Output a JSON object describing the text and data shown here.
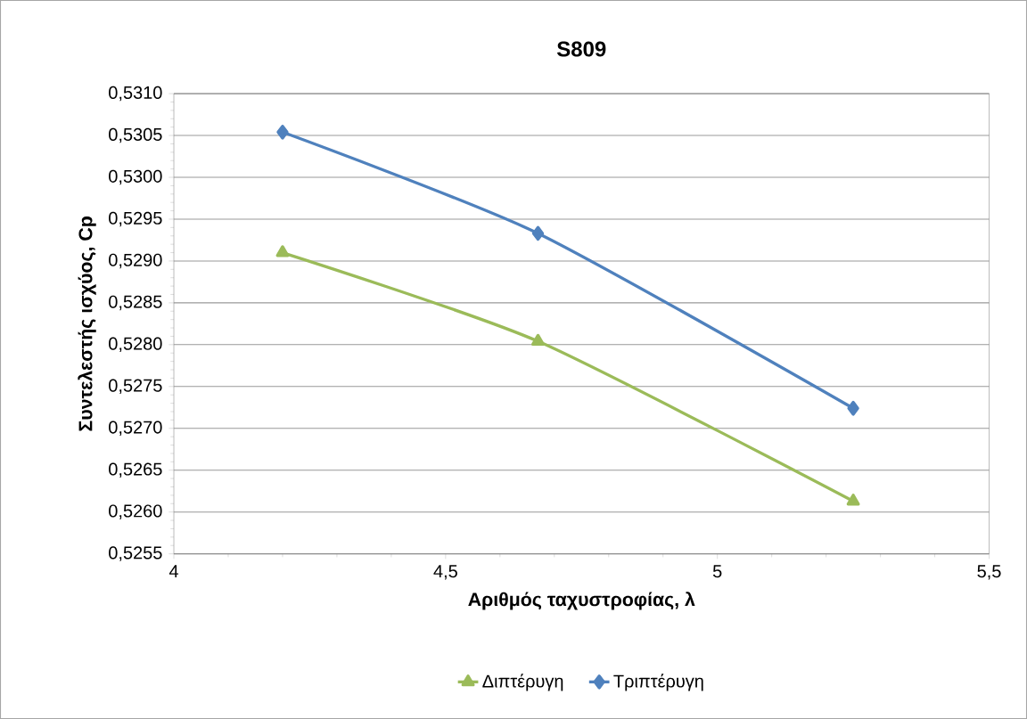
{
  "chart_data": {
    "type": "line",
    "title": "S809",
    "xlabel": "Αριθμός ταχυστροφίας, λ",
    "ylabel": "Συντελεστής ισχύος, Cp",
    "series": [
      {
        "name": "Διπτέρυγη",
        "color": "#9bbb59",
        "marker": "triangle",
        "x": [
          4.2,
          4.67,
          5.25
        ],
        "values": [
          0.5291,
          0.52804,
          0.52613
        ]
      },
      {
        "name": "Τριπτέρυγη",
        "color": "#4f81bd",
        "marker": "diamond",
        "x": [
          4.2,
          4.67,
          5.25
        ],
        "values": [
          0.53054,
          0.52933,
          0.52724
        ]
      }
    ],
    "xlim": [
      4,
      5.5
    ],
    "xticks": [
      4,
      {
        "value": 4.5,
        "label": "4,5"
      },
      5,
      {
        "value": 5.5,
        "label": "5,5"
      }
    ],
    "ylim": [
      0.5255,
      0.531
    ],
    "yticks": [
      {
        "value": 0.5255,
        "label": "0,5255"
      },
      {
        "value": 0.526,
        "label": "0,5260"
      },
      {
        "value": 0.5265,
        "label": "0,5265"
      },
      {
        "value": 0.527,
        "label": "0,5270"
      },
      {
        "value": 0.5275,
        "label": "0,5275"
      },
      {
        "value": 0.528,
        "label": "0,5280"
      },
      {
        "value": 0.5285,
        "label": "0,5285"
      },
      {
        "value": 0.529,
        "label": "0,5290"
      },
      {
        "value": 0.5295,
        "label": "0,5295"
      },
      {
        "value": 0.53,
        "label": "0,5300"
      },
      {
        "value": 0.5305,
        "label": "0,5305"
      },
      {
        "value": 0.531,
        "label": "0,5310"
      }
    ],
    "grid": "y",
    "legend": "bottom",
    "line_style": "solid"
  }
}
